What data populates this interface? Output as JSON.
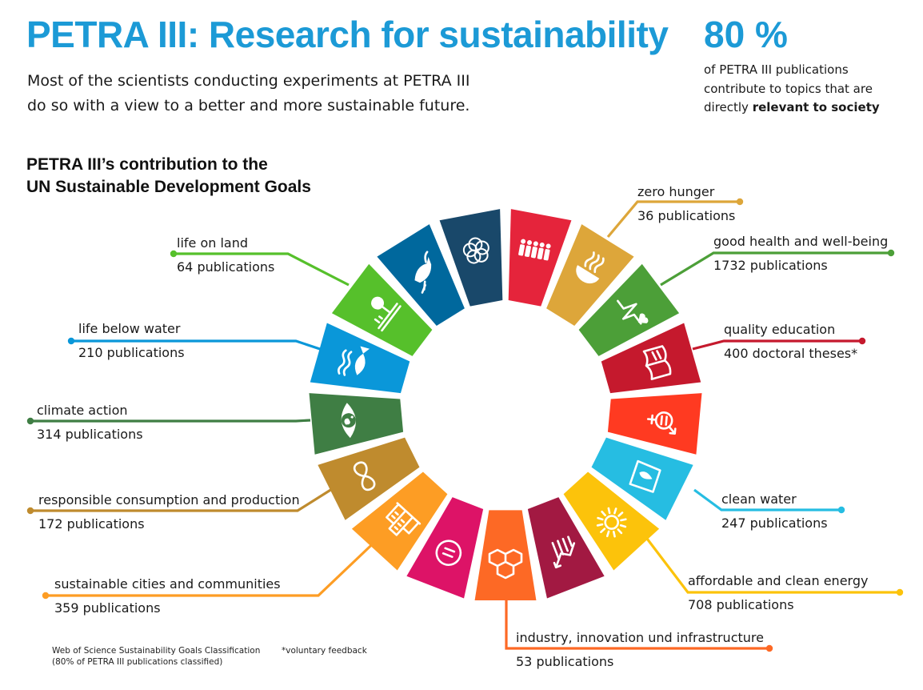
{
  "header": {
    "title": "PETRA III: Research for sustainability",
    "intro_line1": "Most of the scientists conducting experiments at PETRA III",
    "intro_line2": "do so with a view to a better and more sustainable future."
  },
  "stat": {
    "value": "80 %",
    "text_line1": "of PETRA III publications",
    "text_line2": "contribute to topics that are",
    "text_line3_prefix": "directly ",
    "text_line3_bold": "relevant to society"
  },
  "section": {
    "title_line1": "PETRA III’s contribution to the",
    "title_line2": "UN Sustainable Development Goals"
  },
  "goals": [
    {
      "id": 1,
      "color": "#e5243b",
      "icon": "people-icon"
    },
    {
      "id": 2,
      "color": "#dda63a",
      "icon": "bowl-icon",
      "name": "zero hunger",
      "count": "36 publications"
    },
    {
      "id": 3,
      "color": "#4c9f38",
      "icon": "heartbeat-icon",
      "name": "good health and well-being",
      "count": "1732 publications"
    },
    {
      "id": 4,
      "color": "#c5192d",
      "icon": "book-icon",
      "name": "quality education",
      "count": "400 doctoral theses*"
    },
    {
      "id": 5,
      "color": "#ff3a21",
      "icon": "gender-icon"
    },
    {
      "id": 6,
      "color": "#26bde2",
      "icon": "water-drop-icon",
      "name": "clean water",
      "count": "247 publications"
    },
    {
      "id": 7,
      "color": "#fcc30b",
      "icon": "sun-icon",
      "name": "affordable and clean energy",
      "count": "708 publications"
    },
    {
      "id": 8,
      "color": "#a21942",
      "icon": "growth-chart-icon"
    },
    {
      "id": 9,
      "color": "#fd6925",
      "icon": "cubes-icon",
      "name": "industry, innovation und infrastructure",
      "count": "53 publications"
    },
    {
      "id": 10,
      "color": "#dd1367",
      "icon": "equality-icon"
    },
    {
      "id": 11,
      "color": "#fd9d24",
      "icon": "city-icon",
      "name": "sustainable cities and communities",
      "count": "359 publications"
    },
    {
      "id": 12,
      "color": "#bf8b2e",
      "icon": "infinity-icon",
      "name": "responsible consumption and production",
      "count": "172 publications"
    },
    {
      "id": 13,
      "color": "#3f7e44",
      "icon": "earth-eye-icon",
      "name": "climate action",
      "count": "314 publications"
    },
    {
      "id": 14,
      "color": "#0a97d9",
      "icon": "fish-icon",
      "name": "life below water",
      "count": "210 publications"
    },
    {
      "id": 15,
      "color": "#56c02b",
      "icon": "tree-icon",
      "name": "life on land",
      "count": "64 publications"
    },
    {
      "id": 16,
      "color": "#00689d",
      "icon": "dove-icon"
    },
    {
      "id": 17,
      "color": "#19486a",
      "icon": "rings-icon"
    }
  ],
  "footer": {
    "source_line1": "Web of Science Sustainability Goals Classification",
    "source_line2": "(80% of PETRA III publications classified)",
    "note": "*voluntary feedback"
  }
}
